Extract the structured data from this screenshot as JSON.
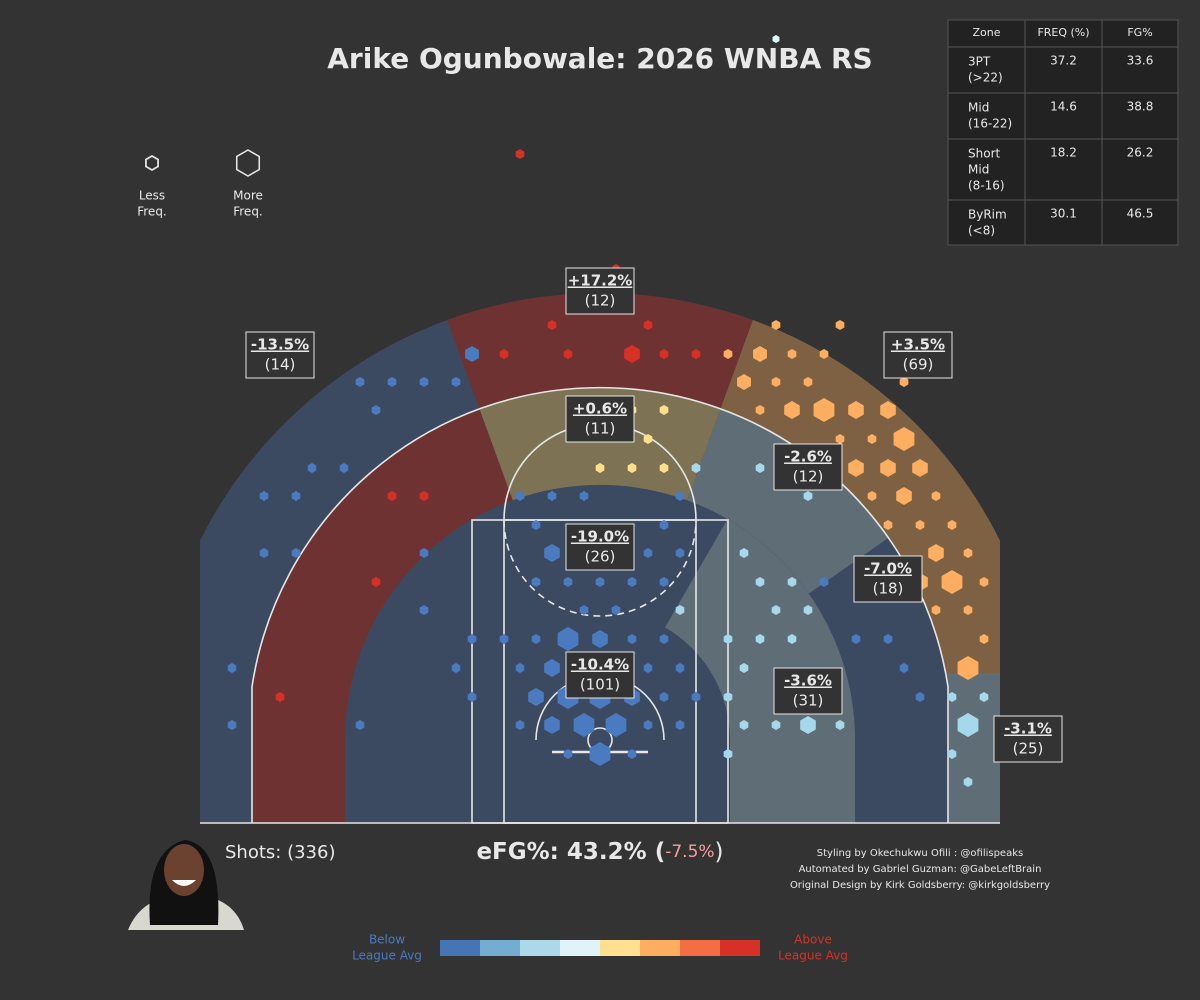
{
  "title": "Arike Ogunbowale: 2026 WNBA RS",
  "size_legend": {
    "less": [
      "Less",
      "Freq."
    ],
    "more": [
      "More",
      "Freq."
    ]
  },
  "table": {
    "header": [
      "Zone",
      "FREQ (%)",
      "FG%"
    ],
    "rows": [
      [
        [
          "3PT",
          "(>22)"
        ],
        37.2,
        33.6
      ],
      [
        [
          "Mid",
          "(16-22)"
        ],
        14.6,
        38.8
      ],
      [
        [
          "Short",
          "Mid",
          "(8-16)"
        ],
        18.2,
        26.2
      ],
      [
        [
          "ByRim",
          "(<8)"
        ],
        30.1,
        46.5
      ]
    ]
  },
  "zones": [
    {
      "label": "+17.2%",
      "count": "(12)"
    },
    {
      "label": "-13.5%",
      "count": "(14)"
    },
    {
      "label": "+3.5%",
      "count": "(69)"
    },
    {
      "label": "+0.6%",
      "count": "(11)"
    },
    {
      "label": "-2.6%",
      "count": "(12)"
    },
    {
      "label": "-19.0%",
      "count": "(26)"
    },
    {
      "label": "-7.0%",
      "count": "(18)"
    },
    {
      "label": "-10.4%",
      "count": "(101)"
    },
    {
      "label": "-3.6%",
      "count": "(31)"
    },
    {
      "label": "-3.1%",
      "count": "(25)"
    }
  ],
  "shots": "Shots: (336)",
  "efg": [
    "eFG%: 43.2% (",
    "-7.5%",
    ")"
  ],
  "credits": [
    "Styling by Okechukwu Ofili : @ofilispeaks",
    "Automated by Gabriel Guzman: @GabeLeftBrain",
    "Original Design by Kirk Goldsberry: @kirkgoldsberry"
  ],
  "colorbar": {
    "below": [
      "Below",
      "League Avg"
    ],
    "above": [
      "Above",
      "League Avg"
    ],
    "colors": [
      "#4575b4",
      "#74add1",
      "#abd9e9",
      "#e0f3f8",
      "#fee090",
      "#fdae61",
      "#f46d43",
      "#d73027"
    ]
  }
}
